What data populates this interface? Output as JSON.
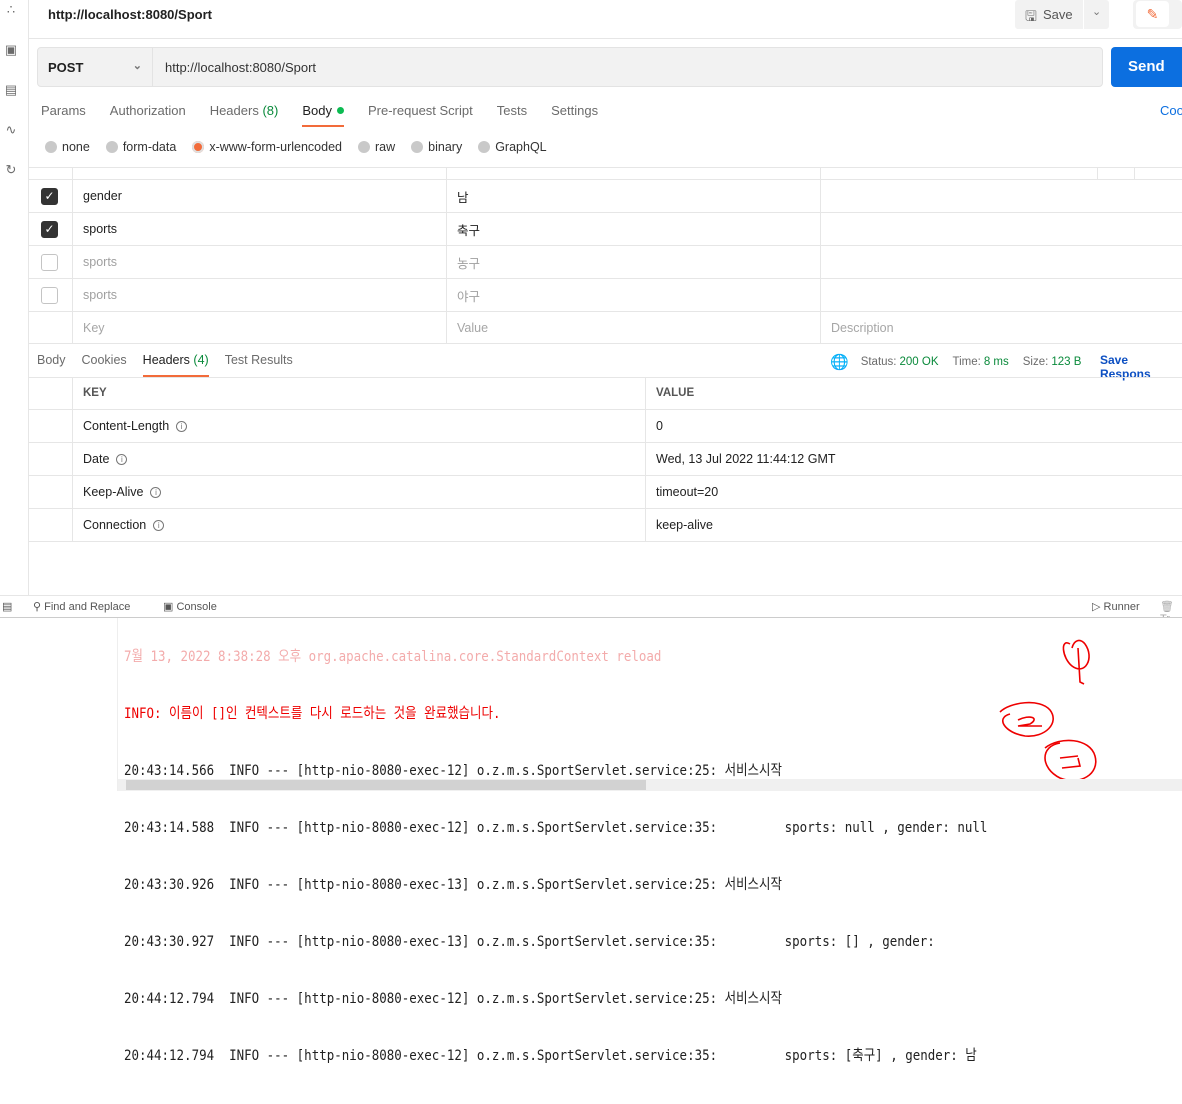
{
  "sidebar": {
    "icons": [
      "apis-icon",
      "environments-icon",
      "mock-servers-icon",
      "monitors-icon",
      "history-icon"
    ]
  },
  "header": {
    "title": "http://localhost:8080/Sport",
    "save_label": "Save"
  },
  "request": {
    "method": "POST",
    "url": "http://localhost:8080/Sport",
    "send_label": "Send"
  },
  "tabs": [
    {
      "label": "Params"
    },
    {
      "label": "Authorization"
    },
    {
      "label": "Headers",
      "count": "(8)"
    },
    {
      "label": "Body"
    },
    {
      "label": "Pre-request Script"
    },
    {
      "label": "Tests"
    },
    {
      "label": "Settings"
    }
  ],
  "cookies_label": "Coo",
  "body_modes": [
    {
      "label": "none"
    },
    {
      "label": "form-data"
    },
    {
      "label": "x-www-form-urlencoded",
      "selected": true
    },
    {
      "label": "raw"
    },
    {
      "label": "binary"
    },
    {
      "label": "GraphQL"
    }
  ],
  "params": [
    {
      "checked": true,
      "key": "gender",
      "value": "남"
    },
    {
      "checked": true,
      "key": "sports",
      "value": "축구"
    },
    {
      "checked": false,
      "key": "sports",
      "value": "농구"
    },
    {
      "checked": false,
      "key": "sports",
      "value": "야구"
    }
  ],
  "params_placeholder": {
    "key": "Key",
    "value": "Value",
    "description": "Description"
  },
  "response": {
    "tabs": [
      {
        "label": "Body"
      },
      {
        "label": "Cookies"
      },
      {
        "label": "Headers",
        "count": "(4)"
      },
      {
        "label": "Test Results"
      }
    ],
    "status_label": "Status:",
    "status": "200 OK",
    "time_label": "Time:",
    "time": "8 ms",
    "size_label": "Size:",
    "size": "123 B",
    "save_label": "Save Respons",
    "headers_columns": [
      "KEY",
      "VALUE"
    ],
    "headers": [
      {
        "key": "Content-Length",
        "value": "0"
      },
      {
        "key": "Date",
        "value": "Wed, 13 Jul 2022 11:44:12 GMT"
      },
      {
        "key": "Keep-Alive",
        "value": "timeout=20"
      },
      {
        "key": "Connection",
        "value": "keep-alive"
      }
    ]
  },
  "bottombar": {
    "find_replace": "Find and Replace",
    "console": "Console",
    "runner": "Runner",
    "trash": "Tr"
  },
  "console": {
    "faded": "7월 13, 2022 8:38:28 오후 org.apache.catalina.core.StandardContext reload",
    "info": "INFO: 이름이 []인 컨텍스트를 다시 로드하는 것을 완료했습니다.",
    "lines": [
      "20:43:14.566  INFO --- [http-nio-8080-exec-12] o.z.m.s.SportServlet.service:25: 서비스시작",
      "20:43:14.588  INFO --- [http-nio-8080-exec-12] o.z.m.s.SportServlet.service:35:         sports: null , gender: null",
      "20:43:30.926  INFO --- [http-nio-8080-exec-13] o.z.m.s.SportServlet.service:25: 서비스시작",
      "20:43:30.927  INFO --- [http-nio-8080-exec-13] o.z.m.s.SportServlet.service:35:         sports: [] , gender: ",
      "20:44:12.794  INFO --- [http-nio-8080-exec-12] o.z.m.s.SportServlet.service:25: 서비스시작",
      "20:44:12.794  INFO --- [http-nio-8080-exec-12] o.z.m.s.SportServlet.service:35:         sports: [축구] , gender: 남"
    ],
    "annotations": [
      "1",
      "2",
      "3"
    ]
  },
  "colors": {
    "accent": "#f26b3a",
    "send": "#0c6fe0",
    "status_ok": "#0a8a3b",
    "log_error": "#e00000",
    "annotation": "#e00000"
  }
}
